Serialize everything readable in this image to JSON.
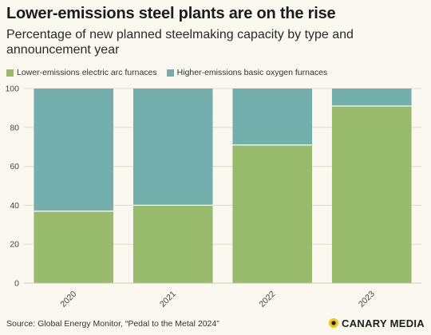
{
  "header": {
    "title": "Lower-emissions steel plants are on the rise",
    "subtitle": "Percentage of new planned steelmaking capacity by type and announcement year"
  },
  "legend": [
    {
      "label": "Lower-emissions electric arc furnaces",
      "color": "#97ba6b"
    },
    {
      "label": "Higher-emissions basic oxygen furnaces",
      "color": "#73b0ad"
    }
  ],
  "chart_data": {
    "type": "bar",
    "stacked": true,
    "categories": [
      "2020",
      "2021",
      "2022",
      "2023"
    ],
    "series": [
      {
        "name": "Lower-emissions electric arc furnaces",
        "values": [
          37,
          40,
          71,
          91
        ],
        "color": "#97ba6b"
      },
      {
        "name": "Higher-emissions basic oxygen furnaces",
        "values": [
          63,
          60,
          29,
          9
        ],
        "color": "#73b0ad"
      }
    ],
    "ylim": [
      0,
      100
    ],
    "yticks": [
      0,
      20,
      40,
      60,
      80,
      100
    ],
    "grid": true,
    "legend_position": "top-left"
  },
  "footer": {
    "source": "Source: Global Energy Monitor, “Pedal to the Metal 2024”",
    "brand": "CANARY MEDIA",
    "brand_color": "#f2c418"
  }
}
